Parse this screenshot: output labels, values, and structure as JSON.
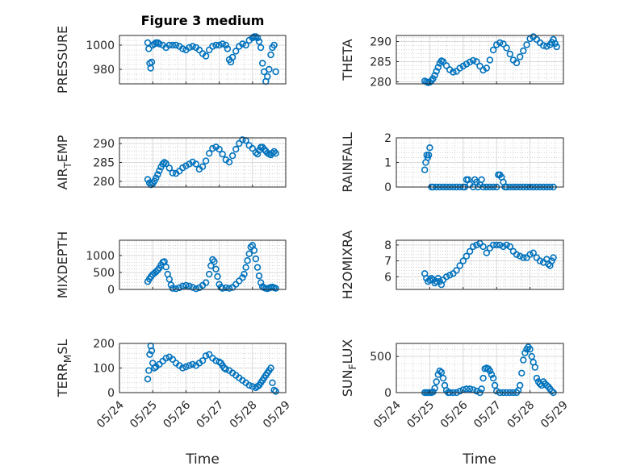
{
  "figure": {
    "title": "Figure 3 medium",
    "x_axis_label": "Time",
    "marker_color": "#0072BD",
    "x_ticks": [
      "05/24",
      "05/25",
      "05/26",
      "05/27",
      "05/28",
      "05/29"
    ]
  },
  "chart_data": [
    {
      "type": "scatter",
      "ylabel": "PRESSURE",
      "xlim": [
        "05/24",
        "05/29"
      ],
      "ylim": [
        968,
        1008
      ],
      "yticks": [
        980,
        1000
      ],
      "grid": true,
      "x_date_start": "05/24",
      "x": [
        0.85,
        0.88,
        0.91,
        0.94,
        0.97,
        1.0,
        1.05,
        1.1,
        1.15,
        1.2,
        1.3,
        1.4,
        1.5,
        1.6,
        1.7,
        1.8,
        1.9,
        2.0,
        2.1,
        2.2,
        2.3,
        2.4,
        2.5,
        2.6,
        2.7,
        2.8,
        2.9,
        3.0,
        3.1,
        3.2,
        3.25,
        3.3,
        3.35,
        3.4,
        3.5,
        3.6,
        3.7,
        3.8,
        3.9,
        4.0,
        4.05,
        4.1,
        4.15,
        4.2,
        4.25,
        4.3,
        4.35,
        4.4,
        4.45,
        4.5,
        4.55,
        4.6,
        4.65,
        4.7
      ],
      "y": [
        1002,
        997,
        985,
        981,
        986,
        1000,
        1001,
        1002,
        1002,
        1001,
        1000,
        998,
        1000,
        1000,
        1000,
        999,
        997,
        996,
        998,
        999,
        998,
        996,
        993,
        991,
        996,
        999,
        1000,
        1000,
        1001,
        1000,
        997,
        988,
        986,
        990,
        995,
        999,
        1001,
        1000,
        1004,
        1006,
        1007,
        1007,
        1006,
        1003,
        998,
        985,
        978,
        970,
        974,
        980,
        992,
        998,
        1000,
        978
      ]
    },
    {
      "type": "scatter",
      "ylabel": "THETA",
      "xlim": [
        "05/24",
        "05/29"
      ],
      "ylim": [
        279.5,
        291.5
      ],
      "yticks": [
        280,
        285,
        290
      ],
      "grid": true,
      "x_date_start": "05/24",
      "x": [
        0.85,
        0.9,
        0.95,
        1.0,
        1.05,
        1.1,
        1.15,
        1.2,
        1.25,
        1.3,
        1.35,
        1.4,
        1.5,
        1.6,
        1.7,
        1.8,
        1.9,
        2.0,
        2.1,
        2.2,
        2.3,
        2.4,
        2.5,
        2.6,
        2.7,
        2.8,
        2.9,
        3.0,
        3.1,
        3.2,
        3.3,
        3.4,
        3.5,
        3.6,
        3.7,
        3.8,
        3.9,
        4.0,
        4.1,
        4.2,
        4.3,
        4.4,
        4.5,
        4.6,
        4.65,
        4.7,
        4.75,
        4.8
      ],
      "y": [
        280.2,
        280.0,
        279.8,
        279.9,
        280.3,
        280.8,
        281.6,
        282.6,
        283.6,
        284.6,
        285.2,
        285.0,
        284.0,
        283.0,
        282.4,
        282.6,
        283.4,
        283.9,
        284.4,
        284.9,
        285.3,
        285.0,
        283.9,
        282.9,
        283.4,
        285.4,
        287.9,
        289.2,
        289.7,
        289.4,
        288.4,
        286.9,
        285.4,
        284.7,
        286.2,
        287.7,
        289.2,
        290.7,
        291.2,
        290.5,
        289.7,
        289.0,
        288.8,
        289.2,
        289.8,
        290.5,
        289.5,
        288.7
      ]
    },
    {
      "type": "scatter",
      "ylabel": "AIR_TEMP",
      "xlim": [
        "05/24",
        "05/29"
      ],
      "ylim": [
        278.5,
        291.5
      ],
      "yticks": [
        280,
        285,
        290
      ],
      "grid": true,
      "x_date_start": "05/24",
      "x": [
        0.85,
        0.9,
        0.95,
        1.0,
        1.05,
        1.1,
        1.15,
        1.2,
        1.25,
        1.3,
        1.35,
        1.4,
        1.5,
        1.6,
        1.7,
        1.8,
        1.9,
        2.0,
        2.1,
        2.2,
        2.3,
        2.4,
        2.5,
        2.6,
        2.7,
        2.8,
        2.9,
        3.0,
        3.1,
        3.2,
        3.3,
        3.4,
        3.5,
        3.6,
        3.7,
        3.8,
        3.9,
        4.0,
        4.1,
        4.15,
        4.2,
        4.25,
        4.3,
        4.35,
        4.4,
        4.45,
        4.5,
        4.55,
        4.6,
        4.65,
        4.7
      ],
      "y": [
        280.5,
        279.6,
        279.1,
        279.4,
        280.1,
        280.9,
        281.8,
        282.8,
        283.8,
        284.6,
        285.0,
        284.7,
        283.5,
        282.2,
        282.1,
        282.7,
        283.6,
        284.1,
        284.6,
        285.1,
        284.6,
        283.2,
        283.9,
        285.4,
        287.4,
        288.7,
        289.1,
        288.5,
        287.2,
        285.7,
        285.1,
        286.8,
        288.5,
        290.0,
        291.0,
        290.8,
        289.5,
        288.7,
        287.6,
        287.2,
        288.2,
        289.0,
        289.0,
        288.5,
        288.0,
        287.5,
        287.2,
        287.0,
        287.5,
        287.9,
        287.4
      ]
    },
    {
      "type": "scatter",
      "ylabel": "RAINFALL",
      "xlim": [
        "05/24",
        "05/29"
      ],
      "ylim": [
        0,
        2
      ],
      "yticks": [
        0,
        1,
        2
      ],
      "grid": true,
      "x_date_start": "05/24",
      "x": [
        0.85,
        0.88,
        0.91,
        0.94,
        0.97,
        1.0,
        1.05,
        1.1,
        1.2,
        1.3,
        1.4,
        1.5,
        1.6,
        1.7,
        1.8,
        1.9,
        2.0,
        2.05,
        2.1,
        2.15,
        2.2,
        2.3,
        2.35,
        2.4,
        2.45,
        2.5,
        2.55,
        2.6,
        2.7,
        2.8,
        2.9,
        3.0,
        3.05,
        3.1,
        3.15,
        3.2,
        3.25,
        3.3,
        3.4,
        3.5,
        3.6,
        3.7,
        3.8,
        3.9,
        4.0,
        4.1,
        4.2,
        4.3,
        4.4,
        4.5,
        4.6,
        4.7
      ],
      "y": [
        0.7,
        1.0,
        1.3,
        1.2,
        1.3,
        1.6,
        0.0,
        0.0,
        0.0,
        0.0,
        0.0,
        0.0,
        0.0,
        0.0,
        0.0,
        0.0,
        0.0,
        0.0,
        0.3,
        0.3,
        0.1,
        0.0,
        0.3,
        0.2,
        0.0,
        0.1,
        0.3,
        0.0,
        0.0,
        0.0,
        0.0,
        0.0,
        0.5,
        0.5,
        0.4,
        0.2,
        0.0,
        0.0,
        0.0,
        0.0,
        0.0,
        0.0,
        0.0,
        0.0,
        0.0,
        0.0,
        0.0,
        0.0,
        0.0,
        0.0,
        0.0,
        0.0
      ]
    },
    {
      "type": "scatter",
      "ylabel": "MIXDEPTH",
      "xlim": [
        "05/24",
        "05/29"
      ],
      "ylim": [
        0,
        1450
      ],
      "yticks": [
        0,
        500,
        1000
      ],
      "grid": true,
      "x_date_start": "05/24",
      "x": [
        0.85,
        0.9,
        0.95,
        1.0,
        1.05,
        1.1,
        1.15,
        1.2,
        1.25,
        1.3,
        1.35,
        1.4,
        1.45,
        1.5,
        1.55,
        1.6,
        1.7,
        1.8,
        1.9,
        2.0,
        2.1,
        2.2,
        2.3,
        2.4,
        2.5,
        2.6,
        2.7,
        2.75,
        2.8,
        2.85,
        2.9,
        2.95,
        3.0,
        3.05,
        3.1,
        3.2,
        3.3,
        3.4,
        3.5,
        3.6,
        3.7,
        3.75,
        3.8,
        3.85,
        3.9,
        3.95,
        4.0,
        4.05,
        4.1,
        4.15,
        4.2,
        4.25,
        4.3,
        4.35,
        4.4,
        4.45,
        4.5,
        4.55,
        4.6,
        4.65,
        4.7
      ],
      "y": [
        230,
        310,
        380,
        440,
        480,
        520,
        570,
        630,
        720,
        800,
        820,
        660,
        450,
        300,
        130,
        30,
        20,
        50,
        100,
        120,
        100,
        60,
        20,
        50,
        120,
        200,
        450,
        700,
        880,
        820,
        600,
        380,
        150,
        60,
        30,
        50,
        30,
        60,
        150,
        250,
        350,
        450,
        650,
        850,
        1050,
        1250,
        1300,
        1150,
        900,
        650,
        400,
        200,
        80,
        50,
        30,
        20,
        40,
        60,
        70,
        50,
        30
      ]
    },
    {
      "type": "scatter",
      "ylabel": "H2OMIXRA",
      "xlim": [
        "05/24",
        "05/29"
      ],
      "ylim": [
        5.2,
        8.3
      ],
      "yticks": [
        6,
        7,
        8
      ],
      "grid": true,
      "x_date_start": "05/24",
      "x": [
        0.85,
        0.9,
        0.95,
        1.0,
        1.05,
        1.1,
        1.15,
        1.2,
        1.25,
        1.3,
        1.35,
        1.4,
        1.5,
        1.6,
        1.7,
        1.8,
        1.9,
        2.0,
        2.1,
        2.2,
        2.3,
        2.4,
        2.5,
        2.6,
        2.7,
        2.8,
        2.9,
        3.0,
        3.1,
        3.2,
        3.3,
        3.4,
        3.5,
        3.6,
        3.7,
        3.8,
        3.9,
        4.0,
        4.1,
        4.2,
        4.3,
        4.4,
        4.5,
        4.55,
        4.6,
        4.65,
        4.7
      ],
      "y": [
        6.2,
        5.9,
        5.7,
        5.8,
        5.9,
        5.8,
        5.6,
        5.7,
        5.9,
        5.7,
        5.5,
        5.8,
        6.0,
        6.1,
        6.2,
        6.4,
        6.7,
        7.0,
        7.3,
        7.6,
        7.9,
        8.0,
        8.1,
        7.9,
        7.5,
        7.8,
        8.0,
        8.0,
        8.0,
        7.9,
        8.0,
        7.9,
        7.6,
        7.4,
        7.3,
        7.2,
        7.2,
        7.4,
        7.5,
        7.2,
        7.0,
        6.9,
        7.1,
        6.8,
        6.7,
        7.0,
        7.2
      ]
    },
    {
      "type": "scatter",
      "ylabel": "TERR_MSL",
      "xlim": [
        "05/24",
        "05/29"
      ],
      "ylim": [
        0,
        200
      ],
      "yticks": [
        0,
        100,
        200
      ],
      "grid": true,
      "x_date_start": "05/24",
      "x": [
        0.85,
        0.88,
        0.91,
        0.94,
        0.97,
        1.0,
        1.05,
        1.1,
        1.2,
        1.3,
        1.4,
        1.5,
        1.6,
        1.7,
        1.8,
        1.9,
        2.0,
        2.1,
        2.2,
        2.3,
        2.4,
        2.5,
        2.6,
        2.7,
        2.8,
        2.9,
        3.0,
        3.05,
        3.1,
        3.15,
        3.2,
        3.3,
        3.4,
        3.5,
        3.6,
        3.7,
        3.8,
        3.9,
        4.0,
        4.1,
        4.15,
        4.2,
        4.25,
        4.3,
        4.35,
        4.4,
        4.45,
        4.5,
        4.55,
        4.6,
        4.65,
        4.7
      ],
      "y": [
        55,
        90,
        155,
        190,
        170,
        120,
        100,
        105,
        115,
        128,
        140,
        145,
        135,
        120,
        110,
        100,
        105,
        110,
        115,
        110,
        120,
        130,
        150,
        155,
        140,
        130,
        125,
        120,
        110,
        100,
        95,
        90,
        80,
        70,
        60,
        50,
        40,
        30,
        25,
        20,
        25,
        30,
        40,
        50,
        60,
        70,
        80,
        90,
        100,
        40,
        10,
        5
      ]
    },
    {
      "type": "scatter",
      "ylabel": "SUN_FLUX",
      "xlim": [
        "05/24",
        "05/29"
      ],
      "ylim": [
        0,
        680
      ],
      "yticks": [
        0,
        500
      ],
      "grid": true,
      "x_date_start": "05/24",
      "x": [
        0.85,
        0.9,
        0.95,
        1.0,
        1.05,
        1.1,
        1.15,
        1.2,
        1.25,
        1.3,
        1.35,
        1.4,
        1.45,
        1.5,
        1.55,
        1.6,
        1.7,
        1.8,
        1.9,
        2.0,
        2.1,
        2.2,
        2.3,
        2.4,
        2.5,
        2.55,
        2.6,
        2.65,
        2.7,
        2.75,
        2.8,
        2.85,
        2.9,
        2.95,
        3.0,
        3.1,
        3.2,
        3.3,
        3.4,
        3.5,
        3.6,
        3.65,
        3.7,
        3.75,
        3.8,
        3.85,
        3.9,
        3.95,
        4.0,
        4.05,
        4.1,
        4.15,
        4.2,
        4.25,
        4.3,
        4.35,
        4.4,
        4.45,
        4.5,
        4.55,
        4.6,
        4.65,
        4.7
      ],
      "y": [
        0,
        0,
        0,
        0,
        0,
        10,
        60,
        150,
        250,
        300,
        280,
        200,
        100,
        30,
        0,
        0,
        0,
        0,
        20,
        40,
        50,
        50,
        40,
        20,
        0,
        50,
        200,
        330,
        340,
        330,
        300,
        250,
        200,
        100,
        20,
        0,
        0,
        0,
        0,
        0,
        0,
        30,
        100,
        270,
        450,
        550,
        600,
        630,
        600,
        500,
        420,
        350,
        200,
        150,
        120,
        100,
        150,
        120,
        100,
        80,
        50,
        20,
        0
      ]
    }
  ]
}
